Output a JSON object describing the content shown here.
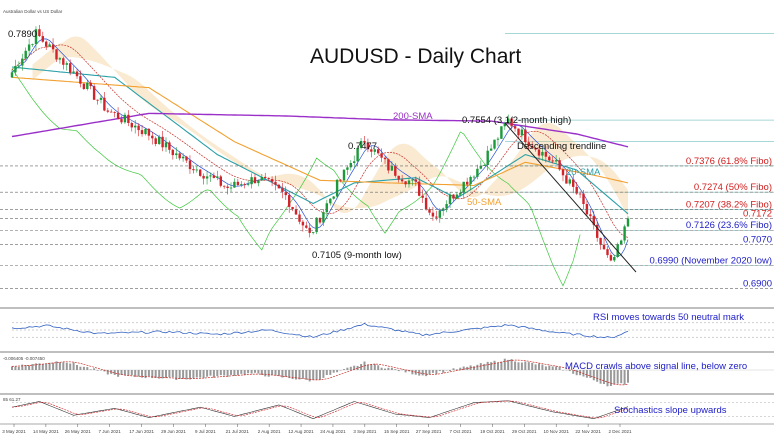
{
  "header": {
    "instrument": "Australian Dollar vs US Dollar"
  },
  "colors": {
    "up": "#1a9a3a",
    "down": "#d2232a",
    "sma200": "#9b30c8",
    "sma50": "#f2a030",
    "sma20": "#2aa0a8",
    "tenkan": "#2850d8",
    "kijun": "#c8302a",
    "chikou": "#3cc83c",
    "cloud": "#f2c27a",
    "fibo": "#50b0b0",
    "annotation_red": "#d21e1e",
    "annotation_blue": "#2020c8",
    "rsi_line": "#3060c0",
    "macd_hist": "#999999"
  },
  "chart_data": [
    {
      "type": "candlestick",
      "title": "AUDUSD - Daily Chart",
      "ylim": [
        0.6855,
        0.7935
      ],
      "x_dates": [
        "3 May 2021",
        "14 May 2021",
        "26 May 2021",
        "7 Jun 2021",
        "17 Jun 2021",
        "29 Jun 2021",
        "9 Jul 2021",
        "21 Jul 2021",
        "2 Aug 2021",
        "12 Aug 2021",
        "24 Aug 2021",
        "3 Sep 2021",
        "15 Sep 2021",
        "27 Sep 2021",
        "7 Oct 2021",
        "19 Oct 2021",
        "29 Oct 2021",
        "10 Nov 2021",
        "22 Nov 2021",
        "2 Dec 2021"
      ],
      "price_path": [
        {
          "i": 0,
          "p": 0.774
        },
        {
          "i": 7,
          "p": 0.789
        },
        {
          "i": 18,
          "p": 0.774
        },
        {
          "i": 28,
          "p": 0.759
        },
        {
          "i": 40,
          "p": 0.75
        },
        {
          "i": 52,
          "p": 0.738
        },
        {
          "i": 63,
          "p": 0.729
        },
        {
          "i": 72,
          "p": 0.733
        },
        {
          "i": 80,
          "p": 0.726
        },
        {
          "i": 87,
          "p": 0.7105
        },
        {
          "i": 95,
          "p": 0.73
        },
        {
          "i": 103,
          "p": 0.7477
        },
        {
          "i": 110,
          "p": 0.737
        },
        {
          "i": 118,
          "p": 0.73
        },
        {
          "i": 123,
          "p": 0.718
        },
        {
          "i": 130,
          "p": 0.728
        },
        {
          "i": 137,
          "p": 0.738
        },
        {
          "i": 145,
          "p": 0.7554
        },
        {
          "i": 152,
          "p": 0.746
        },
        {
          "i": 159,
          "p": 0.738
        },
        {
          "i": 166,
          "p": 0.725
        },
        {
          "i": 172,
          "p": 0.707
        },
        {
          "i": 175,
          "p": 0.699
        },
        {
          "i": 178,
          "p": 0.708
        },
        {
          "i": 180,
          "p": 0.7172
        }
      ],
      "sma200": [
        {
          "i": 0,
          "p": 0.749
        },
        {
          "i": 40,
          "p": 0.758
        },
        {
          "i": 80,
          "p": 0.757
        },
        {
          "i": 110,
          "p": 0.7555
        },
        {
          "i": 140,
          "p": 0.755
        },
        {
          "i": 165,
          "p": 0.75
        },
        {
          "i": 180,
          "p": 0.745
        }
      ],
      "sma50": [
        {
          "i": 0,
          "p": 0.772
        },
        {
          "i": 40,
          "p": 0.768
        },
        {
          "i": 65,
          "p": 0.747
        },
        {
          "i": 90,
          "p": 0.732
        },
        {
          "i": 110,
          "p": 0.731
        },
        {
          "i": 135,
          "p": 0.73
        },
        {
          "i": 150,
          "p": 0.739
        },
        {
          "i": 170,
          "p": 0.734
        },
        {
          "i": 180,
          "p": 0.731
        }
      ],
      "sma20": [
        {
          "i": 0,
          "p": 0.776
        },
        {
          "i": 30,
          "p": 0.772
        },
        {
          "i": 60,
          "p": 0.742
        },
        {
          "i": 88,
          "p": 0.723
        },
        {
          "i": 100,
          "p": 0.731
        },
        {
          "i": 118,
          "p": 0.733
        },
        {
          "i": 130,
          "p": 0.725
        },
        {
          "i": 150,
          "p": 0.742
        },
        {
          "i": 165,
          "p": 0.736
        },
        {
          "i": 180,
          "p": 0.719
        }
      ],
      "levels": [
        {
          "label": "0.7376 (61.8% Fibo)",
          "value": 0.7376,
          "color": "#d21e1e"
        },
        {
          "label": "0.7274 (50% Fibo)",
          "value": 0.7274,
          "color": "#d21e1e"
        },
        {
          "label": "0.7207 (38.2% Fibo)",
          "value": 0.7207,
          "color": "#d21e1e"
        },
        {
          "label": "0.7172",
          "value": 0.7172,
          "color": "#d21e1e"
        },
        {
          "label": "0.7126 (23.6% Fibo)",
          "value": 0.7126,
          "color": "#2020c8"
        },
        {
          "label": "0.7070",
          "value": 0.707,
          "color": "#2020c8"
        },
        {
          "label": "0.6990 (November 2020 low)",
          "value": 0.699,
          "color": "#2020c8"
        },
        {
          "label": "0.6900",
          "value": 0.69,
          "color": "#2020c8"
        }
      ],
      "annotations": {
        "high_label": "0.7890",
        "peak_label": "0.7477",
        "swing_high_label": "0.7554 (3 1/2-month high)",
        "low_label": "0.7105 (9-month low)",
        "trendline_label": "Descending trendline",
        "sma200_label": "200-SMA",
        "sma20_label": "20-SMA",
        "sma50_label": "50-SMA"
      }
    },
    {
      "type": "line",
      "title": "RSI moves towards 50 neutral mark",
      "ylim": [
        0,
        100
      ],
      "values_path": [
        {
          "i": 0,
          "v": 55
        },
        {
          "i": 10,
          "v": 62
        },
        {
          "i": 25,
          "v": 40
        },
        {
          "i": 45,
          "v": 45
        },
        {
          "i": 60,
          "v": 38
        },
        {
          "i": 75,
          "v": 50
        },
        {
          "i": 88,
          "v": 30
        },
        {
          "i": 103,
          "v": 66
        },
        {
          "i": 120,
          "v": 36
        },
        {
          "i": 145,
          "v": 64
        },
        {
          "i": 160,
          "v": 42
        },
        {
          "i": 175,
          "v": 28
        },
        {
          "i": 180,
          "v": 46
        }
      ]
    },
    {
      "type": "bar",
      "title": "MACD crawls above signal line, below zero",
      "ylabel_text": "-0.006405 -0.007450",
      "values_path": [
        {
          "i": 0,
          "v": 0.2
        },
        {
          "i": 15,
          "v": 0.5
        },
        {
          "i": 30,
          "v": -0.3
        },
        {
          "i": 50,
          "v": -0.5
        },
        {
          "i": 70,
          "v": -0.2
        },
        {
          "i": 88,
          "v": -0.6
        },
        {
          "i": 103,
          "v": 0.4
        },
        {
          "i": 120,
          "v": -0.3
        },
        {
          "i": 145,
          "v": 0.6
        },
        {
          "i": 160,
          "v": 0.1
        },
        {
          "i": 175,
          "v": -0.9
        },
        {
          "i": 180,
          "v": -0.7
        }
      ]
    },
    {
      "type": "line",
      "title": "Stochastics slope upwards",
      "ylabel_text": "85 61.27",
      "ylim": [
        0,
        100
      ],
      "values_path": [
        {
          "i": 0,
          "v": 60
        },
        {
          "i": 8,
          "v": 85
        },
        {
          "i": 18,
          "v": 25
        },
        {
          "i": 30,
          "v": 55
        },
        {
          "i": 40,
          "v": 15
        },
        {
          "i": 55,
          "v": 60
        },
        {
          "i": 65,
          "v": 20
        },
        {
          "i": 78,
          "v": 70
        },
        {
          "i": 88,
          "v": 10
        },
        {
          "i": 100,
          "v": 85
        },
        {
          "i": 112,
          "v": 30
        },
        {
          "i": 122,
          "v": 15
        },
        {
          "i": 135,
          "v": 80
        },
        {
          "i": 145,
          "v": 88
        },
        {
          "i": 158,
          "v": 40
        },
        {
          "i": 170,
          "v": 10
        },
        {
          "i": 180,
          "v": 62
        }
      ]
    }
  ]
}
